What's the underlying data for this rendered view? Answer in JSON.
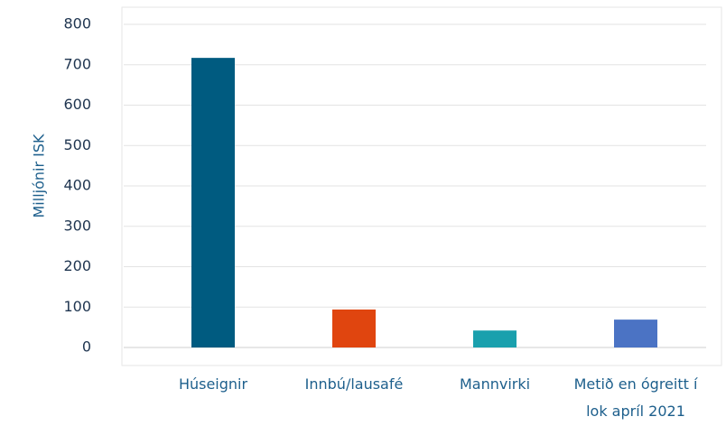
{
  "chart_data": {
    "type": "bar",
    "y_label": "Milljónir ISK",
    "categories": [
      "Húseignir",
      "Innbú/lausafé",
      "Mannvirki",
      "Metið en ógreitt í lok apríl 2021"
    ],
    "values": [
      717,
      94,
      42,
      69
    ],
    "colors": [
      "#005b80",
      "#e0450f",
      "#1aa0ad",
      "#4b73c4"
    ],
    "ylim": [
      0,
      800
    ],
    "yticks": [
      0,
      100,
      200,
      300,
      400,
      500,
      600,
      700,
      800
    ],
    "grid": true
  }
}
